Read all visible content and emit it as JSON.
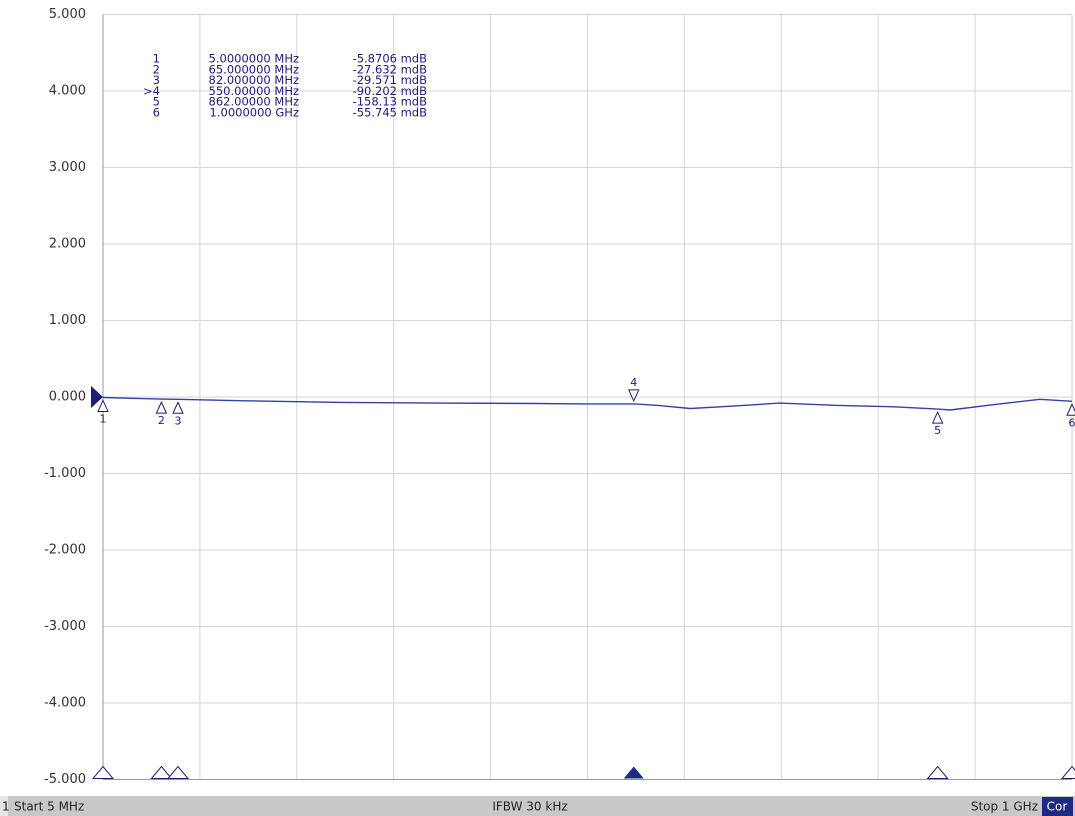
{
  "chart_data": {
    "type": "line",
    "x": [
      5,
      65,
      82,
      150,
      250,
      350,
      450,
      500,
      550,
      575,
      608,
      650,
      700,
      760,
      820,
      862,
      875,
      920,
      967,
      1000
    ],
    "series": [
      {
        "color": "#3340a8",
        "values": [
          -0.006,
          -0.028,
          -0.03,
          -0.05,
          -0.07,
          -0.08,
          -0.085,
          -0.09,
          -0.09,
          -0.11,
          -0.15,
          -0.12,
          -0.08,
          -0.11,
          -0.13,
          -0.158,
          -0.17,
          -0.1,
          -0.03,
          -0.056
        ]
      }
    ],
    "xlim": [
      5,
      1000
    ],
    "xticks": [
      5,
      104.5,
      204,
      303.5,
      403,
      502.5,
      602,
      701.5,
      801,
      900.5,
      1000
    ],
    "ylim": [
      -5,
      5
    ],
    "yticks": [
      {
        "value": 5,
        "label": "5.000"
      },
      {
        "value": 4,
        "label": "4.000"
      },
      {
        "value": 3,
        "label": "3.000"
      },
      {
        "value": 2,
        "label": "2.000"
      },
      {
        "value": 1,
        "label": "1.000"
      },
      {
        "value": 0,
        "label": "0.000"
      },
      {
        "value": -1,
        "label": "-1.000"
      },
      {
        "value": -2,
        "label": "-2.000"
      },
      {
        "value": -3,
        "label": "-3.000"
      },
      {
        "value": -4,
        "label": "-4.000"
      },
      {
        "value": -5,
        "label": "-5.000"
      }
    ],
    "grid": true,
    "marker_table": [
      [
        "1",
        "5.0000000 MHz",
        "-5.8706 mdB"
      ],
      [
        "2",
        "65.000000 MHz",
        "-27.632 mdB"
      ],
      [
        "3",
        "82.000000 MHz",
        "-29.571 mdB"
      ],
      [
        ">4",
        "550.00000 MHz",
        "-90.202 mdB"
      ],
      [
        "5",
        "862.00000 MHz",
        "-158.13 mdB"
      ],
      [
        "6",
        "1.0000000 GHz",
        "-55.745 mdB"
      ]
    ],
    "markers": [
      {
        "id": "1",
        "x": 5,
        "y": -0.0058706,
        "active": false
      },
      {
        "id": "2",
        "x": 65,
        "y": -0.027632,
        "active": false
      },
      {
        "id": "3",
        "x": 82,
        "y": -0.029571,
        "active": false
      },
      {
        "id": "4",
        "x": 550,
        "y": -0.090202,
        "active": true
      },
      {
        "id": "5",
        "x": 862,
        "y": -0.15813,
        "active": false
      },
      {
        "id": "6",
        "x": 1000,
        "y": -0.055745,
        "active": false
      }
    ],
    "status_bar": {
      "channel": "1",
      "start": "Start 5 MHz",
      "ifbw": "IFBW 30 kHz",
      "stop": "Stop 1 GHz",
      "cor": "Cor"
    }
  }
}
